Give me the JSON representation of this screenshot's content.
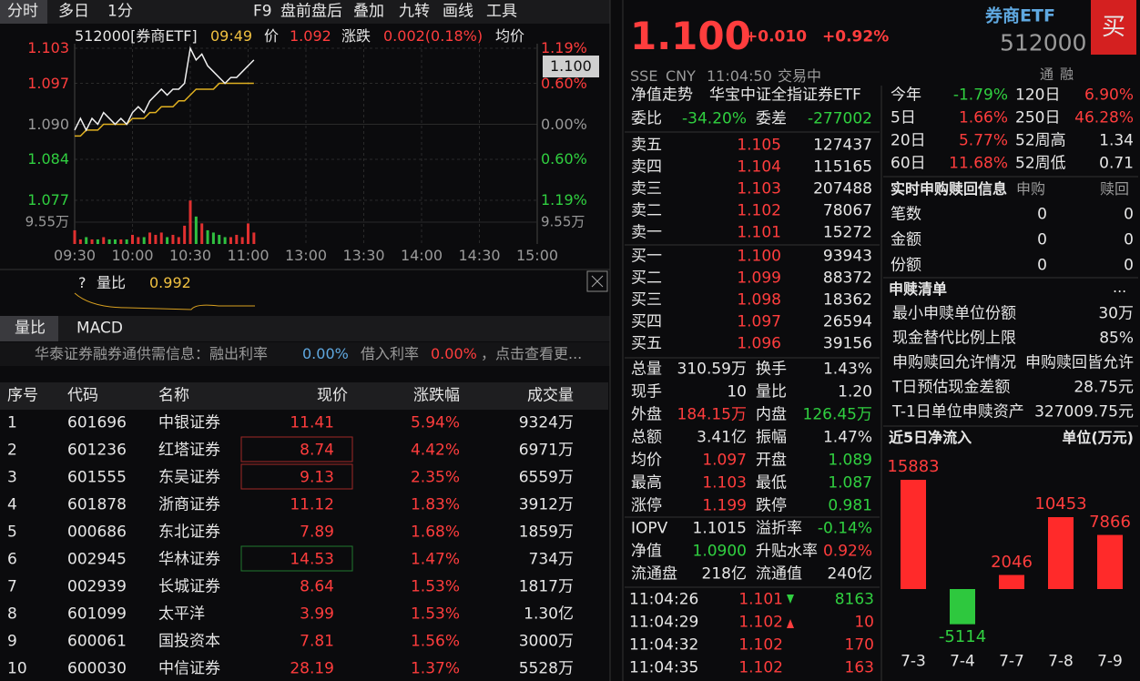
{
  "toolbar": {
    "tabs": [
      "分时",
      "多日",
      "1分",
      "F9",
      "盘前盘后",
      "叠加",
      "九转",
      "画线",
      "工具"
    ]
  },
  "chart_header": {
    "symbol": "512000[券商ETF]",
    "time": "09:49",
    "price_label": "价",
    "price": "1.092",
    "change_label": "涨跌",
    "change": "0.002(0.18%)",
    "avg_label": "均价"
  },
  "intraday": {
    "price_ticks": [
      1.103,
      1.097,
      {
        "value": 1.09,
        "label": "1.090"
      },
      1.084,
      1.077
    ],
    "pct_ticks": [
      "1.19%",
      "0.60%",
      "0.00%",
      "0.60%",
      "1.19%"
    ],
    "volume_tick": {
      "value": 9.55,
      "label": "9.55万"
    },
    "time_labels": [
      "09:30",
      "10:00",
      "10:30",
      "11:00",
      "13:00",
      "13:30",
      "14:00",
      "14:30",
      "15:00"
    ],
    "last_price_tag": "1.100",
    "price": [
      1.089,
      1.091,
      1.089,
      1.091,
      1.09,
      1.092,
      1.091,
      1.09,
      1.091,
      1.09,
      1.092,
      1.093,
      1.092,
      1.094,
      1.095,
      1.096,
      1.095,
      1.096,
      1.096,
      1.097,
      1.103,
      1.101,
      1.102,
      1.1,
      1.099,
      1.098,
      1.097,
      1.098,
      1.098,
      1.099,
      1.1,
      1.101
    ],
    "avg": [
      1.088,
      1.088,
      1.089,
      1.089,
      1.089,
      1.09,
      1.09,
      1.09,
      1.09,
      1.09,
      1.091,
      1.091,
      1.091,
      1.092,
      1.092,
      1.093,
      1.093,
      1.093,
      1.094,
      1.094,
      1.095,
      1.096,
      1.096,
      1.096,
      1.096,
      1.097,
      1.097,
      1.097,
      1.097,
      1.097,
      1.097,
      1.097
    ],
    "volume": [
      6,
      2,
      3,
      2,
      2,
      3,
      2,
      2,
      2,
      2,
      4,
      3,
      3,
      5,
      4,
      5,
      3,
      4,
      3,
      8,
      19,
      12,
      9,
      6,
      5,
      4,
      3,
      3,
      4,
      3,
      9,
      5
    ]
  },
  "volume_ratio_panel": {
    "help": "?",
    "label": "量比",
    "value": "0.992"
  },
  "indicator_tabs": [
    "量比",
    "MACD"
  ],
  "info_bar": {
    "text": "华泰证券融券通供需信息：融出利率",
    "lend_rate": "0.00%",
    "borrow_label": "借入利率",
    "borrow_rate": "0.00%",
    "link": "，点击查看更..."
  },
  "table": {
    "headers": [
      "序号",
      "代码",
      "名称",
      "现价",
      "涨跌幅",
      "成交量"
    ],
    "rows": [
      [
        "1",
        "601696",
        "中银证券",
        "11.41",
        "5.94%",
        "9324万"
      ],
      [
        "2",
        "601236",
        "红塔证券",
        "8.74",
        "4.42%",
        "6971万"
      ],
      [
        "3",
        "601555",
        "东吴证券",
        "9.13",
        "2.35%",
        "6559万"
      ],
      [
        "4",
        "601878",
        "浙商证券",
        "11.12",
        "1.83%",
        "3912万"
      ],
      [
        "5",
        "000686",
        "东北证券",
        "7.89",
        "1.68%",
        "1859万"
      ],
      [
        "6",
        "002945",
        "华林证券",
        "14.53",
        "1.47%",
        "734万"
      ],
      [
        "7",
        "002939",
        "长城证券",
        "8.64",
        "1.53%",
        "1817万"
      ],
      [
        "8",
        "601099",
        "太平洋",
        "3.99",
        "1.53%",
        "1.30亿"
      ],
      [
        "9",
        "600061",
        "国投资本",
        "7.81",
        "1.56%",
        "3000万"
      ],
      [
        "10",
        "600030",
        "中信证券",
        "28.19",
        "1.37%",
        "5528万"
      ]
    ]
  },
  "quote": {
    "price": "1.100",
    "change": "+0.010",
    "change_pct": "+0.92%",
    "name": "券商ETF",
    "code": "512000",
    "buy_button": "买",
    "exchange": "SSE",
    "currency": "CNY",
    "time": "11:04:50",
    "status": "交易中",
    "badges": [
      "通",
      "融"
    ]
  },
  "nav_tab": {
    "label": "净值走势",
    "index": "华宝中证全指证券ETF"
  },
  "order_ratio": [
    "委比",
    "-34.20%",
    "委差",
    "-277002"
  ],
  "asks": [
    [
      "卖五",
      "1.105",
      "127437"
    ],
    [
      "卖四",
      "1.104",
      "115165"
    ],
    [
      "卖三",
      "1.103",
      "207488"
    ],
    [
      "卖二",
      "1.102",
      "78067"
    ],
    [
      "卖一",
      "1.101",
      "15272"
    ]
  ],
  "bids": [
    [
      "买一",
      "1.100",
      "93943"
    ],
    [
      "买二",
      "1.099",
      "88372"
    ],
    [
      "买三",
      "1.098",
      "18362"
    ],
    [
      "买四",
      "1.097",
      "26594"
    ],
    [
      "买五",
      "1.096",
      "39156"
    ]
  ],
  "stats": [
    [
      "总量",
      "310.59万",
      "换手",
      "1.43%"
    ],
    [
      "现手",
      "10",
      "量比",
      "1.20"
    ],
    [
      "外盘",
      "184.15万",
      "内盘",
      "126.45万"
    ],
    [
      "总额",
      "3.41亿",
      "振幅",
      "1.47%"
    ],
    [
      "均价",
      "1.097",
      "开盘",
      "1.089"
    ],
    [
      "最高",
      "1.103",
      "最低",
      "1.087"
    ],
    [
      "涨停",
      "1.199",
      "跌停",
      "0.981"
    ]
  ],
  "fund_stats": [
    [
      "IOPV",
      "1.1015",
      "溢折率",
      "-0.14%"
    ],
    [
      "净值",
      "1.0900",
      "升贴水率",
      "0.92%"
    ],
    [
      "流通盘",
      "218亿",
      "流通值",
      "240亿"
    ]
  ],
  "ticks": [
    [
      "11:04:26",
      "1.101",
      "8163"
    ],
    [
      "11:04:29",
      "1.102",
      "10"
    ],
    [
      "11:04:32",
      "1.102",
      "170"
    ],
    [
      "11:04:35",
      "1.102",
      "163"
    ]
  ],
  "returns": [
    [
      "今年",
      "-1.79%",
      "120日",
      "6.90%"
    ],
    [
      "5日",
      "1.66%",
      "250日",
      "46.28%"
    ],
    [
      "20日",
      "5.77%",
      "52周高",
      "1.34"
    ],
    [
      "60日",
      "11.68%",
      "52周低",
      "0.71"
    ]
  ],
  "creation_redemption": {
    "title": "实时申购赎回信息",
    "headers": [
      "申购",
      "赎回"
    ],
    "rows": [
      [
        "笔数",
        "0",
        "0"
      ],
      [
        "金额",
        "0",
        "0"
      ],
      [
        "份额",
        "0",
        "0"
      ]
    ]
  },
  "basket": {
    "title": "申赎清单",
    "more": "...",
    "rows": [
      [
        "最小申赎单位份额",
        "30万"
      ],
      [
        "现金替代比例上限",
        "85%"
      ],
      [
        "申购赎回允许情况",
        "申购赎回皆允许"
      ],
      [
        "T日预估现金差额",
        "28.75元"
      ],
      [
        "T-1日单位申赎资产",
        "327009.75元"
      ]
    ]
  },
  "net_inflow": {
    "title": "近5日净流入",
    "unit": "单位(万元)",
    "categories": [
      "7-3",
      "7-4",
      "7-7",
      "7-8",
      "7-9"
    ],
    "values": [
      15883,
      -5114,
      2046,
      10453,
      7866
    ]
  }
}
